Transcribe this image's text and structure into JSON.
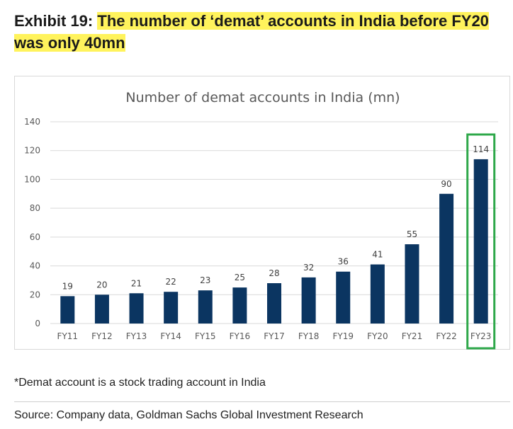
{
  "exhibit": {
    "label": "Exhibit 19:",
    "headline": "The number of ‘demat’ accounts in India before FY20 was only 40mn"
  },
  "footnote": "*Demat account is a stock trading account in India",
  "source": "Source: Company data, Goldman Sachs Global Investment Research",
  "colors": {
    "bar": "#0b3561",
    "highlight_box": "#2ea84a",
    "headline_highlight": "#fff35c"
  },
  "chart_data": {
    "type": "bar",
    "title": "Number of demat accounts in India (mn)",
    "categories": [
      "FY11",
      "FY12",
      "FY13",
      "FY14",
      "FY15",
      "FY16",
      "FY17",
      "FY18",
      "FY19",
      "FY20",
      "FY21",
      "FY22",
      "FY23"
    ],
    "values": [
      19,
      20,
      21,
      22,
      23,
      25,
      28,
      32,
      36,
      41,
      55,
      90,
      114
    ],
    "ylim": [
      0,
      140
    ],
    "yticks": [
      0,
      20,
      40,
      60,
      80,
      100,
      120,
      140
    ],
    "grid": true,
    "legend": "none",
    "highlighted_category": "FY23"
  }
}
